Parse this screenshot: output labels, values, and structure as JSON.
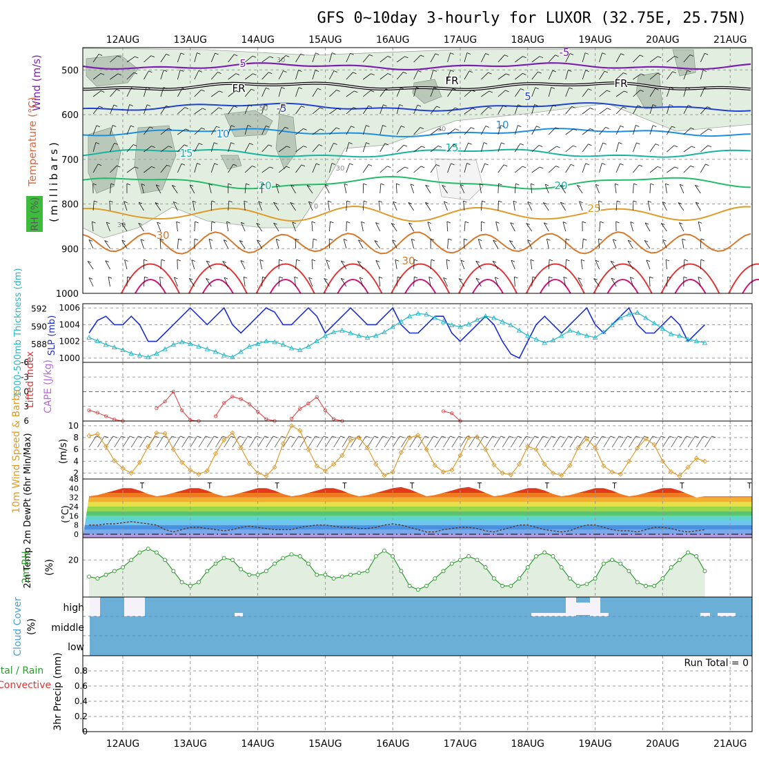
{
  "title": "GFS 0~10day 3-hourly for LUXOR (32.75E, 25.75N)",
  "colors": {
    "bg": "#ffffff",
    "axis": "#000000",
    "grid": "#9a9a9a",
    "rh_light": "#e2efe0",
    "rh_dark": "#b9c8b9",
    "purple": "#7b1fb0",
    "blue": "#2040d0",
    "lightblue": "#1e8fe0",
    "teal": "#18b3a0",
    "green": "#22bb66",
    "orange": "#e09a2a",
    "darkorange": "#d6782c",
    "red": "#e03535",
    "magenta": "#d0147a",
    "slp": "#1a2ed0",
    "thick": "#22b8c8",
    "li": "#e03535",
    "cape": "#b56ad6",
    "wind10": "#e09a2a",
    "rh2m": "#2e9a2e",
    "cloud": "#6baed6",
    "cloud_white": "#f6f2fa",
    "precip_green": "#2e9a2e",
    "precip_red": "#e03535"
  },
  "axis_days": [
    "12AUG",
    "13AUG",
    "14AUG",
    "15AUG",
    "16AUG",
    "17AUG",
    "18AUG",
    "19AUG",
    "20AUG",
    "21AUG"
  ],
  "panels": {
    "upper": {
      "ylabel_wind": "Wind (m/s)",
      "ylabel_temp": "Temperature (°C)",
      "ylabel_rh": "RH (%)",
      "ylabel_mb": "(millibars)",
      "ticks": [
        500,
        600,
        700,
        800,
        900,
        1000
      ],
      "labels": [
        {
          "t": "5",
          "x": 352,
          "y": 97,
          "c": "purple"
        },
        {
          "t": "-5",
          "x": 818,
          "y": 81,
          "c": "purple"
        },
        {
          "t": "FR",
          "x": 346,
          "y": 133,
          "c": "axis"
        },
        {
          "t": "FR",
          "x": 655,
          "y": 122,
          "c": "axis"
        },
        {
          "t": "FR",
          "x": 900,
          "y": 126,
          "c": "axis"
        },
        {
          "t": "-5",
          "x": 408,
          "y": 162,
          "c": "blue"
        },
        {
          "t": "5",
          "x": 765,
          "y": 145,
          "c": "blue"
        },
        {
          "t": "10",
          "x": 323,
          "y": 199,
          "c": "lightblue"
        },
        {
          "t": "10",
          "x": 728,
          "y": 186,
          "c": "lightblue"
        },
        {
          "t": "15",
          "x": 270,
          "y": 227,
          "c": "teal"
        },
        {
          "t": "15",
          "x": 655,
          "y": 219,
          "c": "teal"
        },
        {
          "t": "20",
          "x": 384,
          "y": 274,
          "c": "teal"
        },
        {
          "t": "20",
          "x": 813,
          "y": 274,
          "c": "teal"
        },
        {
          "t": "25",
          "x": 861,
          "y": 307,
          "c": "orange"
        },
        {
          "t": "30",
          "x": 236,
          "y": 346,
          "c": "darkorange"
        },
        {
          "t": "30",
          "x": 592,
          "y": 383,
          "c": "darkorange"
        }
      ],
      "rh_labels": [
        {
          "t": "30",
          "x": 407,
          "y": 90
        },
        {
          "t": "50",
          "x": 382,
          "y": 160
        },
        {
          "t": "30",
          "x": 640,
          "y": 190
        },
        {
          "t": "30",
          "x": 493,
          "y": 247
        },
        {
          "t": "30",
          "x": 176,
          "y": 329
        },
        {
          "t": "0",
          "x": 458,
          "y": 302
        }
      ]
    },
    "slp_thickness": {
      "ylabel_thick": "1000-500mb Thickness (dm)",
      "ylabel_slp": "SLP (mb)",
      "left_ticks": [
        588,
        590,
        592
      ],
      "right_ticks": [
        1000,
        1002,
        1004,
        1006
      ]
    },
    "lifted": {
      "ylabel_li": "Lifted Index",
      "ylabel_cape": "CAPE (J/kg)",
      "ticks": [
        "-6",
        "-3",
        "0",
        "3",
        "6"
      ]
    },
    "wind10": {
      "ylabel": "10m Wind Speed & Barbs",
      "ylabel_units": "(m/s)",
      "ticks": [
        2,
        4,
        6,
        8,
        10
      ]
    },
    "temp2m": {
      "ylabel": "2m Temp 2m DewPt (6hr Min/Max)",
      "ylabel_units": "(°C)",
      "ticks": [
        0,
        8,
        16,
        24,
        32,
        40,
        48
      ]
    },
    "rh2m": {
      "ylabel": "2m RH",
      "ylabel_units": "(%)",
      "ticks": [
        20
      ]
    },
    "cloud": {
      "ylabel": "Cloud Cover",
      "ylabel_units": "(%)",
      "levels": [
        "high",
        "middle",
        "low"
      ]
    },
    "precip": {
      "ylabel_total": "Total / Rain",
      "ylabel_conv": "Convective",
      "ylabel_units": "3hr Precip (mm)",
      "run_total": "Run Total = 0",
      "ticks": [
        "0",
        "0.2",
        "0.4",
        "0.6",
        "0.8"
      ]
    }
  },
  "chart_data": {
    "type": "line",
    "title": "GFS 0~10day 3-hourly for LUXOR (32.75E, 25.75N)",
    "x_start": "11AUG 12Z",
    "x_step_hours": 3,
    "x_ticks": [
      "12AUG",
      "13AUG",
      "14AUG",
      "15AUG",
      "16AUG",
      "17AUG",
      "18AUG",
      "19AUG",
      "20AUG",
      "21AUG"
    ],
    "series": [
      {
        "name": "SLP (mb)",
        "values": [
          1003,
          1004.5,
          1005,
          1004,
          1004,
          1005,
          1004,
          1002,
          1002,
          1003,
          1004,
          1005,
          1006,
          1005,
          1004,
          1005,
          1006,
          1004,
          1003,
          1004,
          1005,
          1006,
          1005.5,
          1004,
          1004,
          1005,
          1006,
          1005,
          1003,
          1004,
          1005,
          1006,
          1005,
          1004,
          1004,
          1005,
          1006,
          1004,
          1003,
          1003,
          1004,
          1005,
          1005,
          1003,
          1002,
          1003,
          1004,
          1005,
          1004,
          1002,
          1000.5,
          1000,
          1002,
          1004,
          1005,
          1004,
          1003,
          1004,
          1005,
          1006,
          1004,
          1003,
          1004,
          1005,
          1006,
          1004,
          1003,
          1003,
          1004,
          1005,
          1004,
          1002,
          1003,
          1004
        ],
        "axis": "right"
      },
      {
        "name": "1000-500mb Thickness (dm)",
        "values": [
          588.8,
          588.4,
          588.0,
          587.7,
          587.4,
          587.0,
          586.8,
          586.6,
          587.0,
          587.5,
          588.0,
          588.3,
          588.1,
          587.8,
          587.5,
          587.2,
          586.8,
          586.6,
          587.2,
          587.8,
          588.1,
          588.4,
          588.3,
          588.0,
          587.6,
          587.4,
          587.8,
          588.4,
          589.0,
          589.4,
          589.6,
          589.3,
          589.0,
          588.8,
          589.0,
          589.4,
          590.0,
          590.6,
          591.2,
          591.5,
          591.4,
          591.0,
          590.6,
          590.2,
          590.0,
          590.3,
          590.8,
          591.2,
          591.0,
          590.6,
          590.2,
          589.6,
          589.0,
          588.6,
          588.2,
          588.5,
          589.0,
          589.6,
          589.3,
          589.0,
          588.8,
          589.4,
          590.2,
          591.0,
          591.4,
          591.6,
          591.0,
          590.4,
          589.8,
          589.2,
          589.0,
          588.6,
          588.4,
          588.2
        ],
        "axis": "left"
      },
      {
        "name": "10m Wind Speed (m/s)",
        "values": [
          8.3,
          8.6,
          6.5,
          4.1,
          2.8,
          2.0,
          3.8,
          6.5,
          8.8,
          8.7,
          6.0,
          3.8,
          2.5,
          1.8,
          2.4,
          5.3,
          7.6,
          8.8,
          6.3,
          3.6,
          2.0,
          1.5,
          3.0,
          7.0,
          10.0,
          9.2,
          6.0,
          3.2,
          2.4,
          3.5,
          5.0,
          7.6,
          8.0,
          6.3,
          3.5,
          1.6,
          2.2,
          5.5,
          8.0,
          8.4,
          6.0,
          3.3,
          2.2,
          2.5,
          5.0,
          8.0,
          8.1,
          6.0,
          3.4,
          2.0,
          1.7,
          3.5,
          6.5,
          6.0,
          3.5,
          2.0,
          1.6,
          3.3,
          6.3,
          7.8,
          6.3,
          3.2,
          2.2,
          1.8,
          4.0,
          6.2,
          7.8,
          6.8,
          4.0,
          2.2,
          1.5,
          3.0,
          4.5,
          4.0
        ],
        "axis": "left"
      },
      {
        "name": "2m RH (%)",
        "values": [
          11,
          10,
          12,
          14,
          16,
          20,
          24,
          26,
          24,
          20,
          14,
          8,
          6,
          8,
          14,
          18,
          21,
          20,
          15,
          12,
          12,
          14,
          18,
          21,
          23,
          22,
          18,
          12,
          12,
          10,
          11,
          12,
          13,
          14,
          22,
          25,
          22,
          14,
          6,
          4,
          6,
          10,
          14,
          18,
          20,
          22,
          20,
          16,
          10,
          6,
          6,
          10,
          16,
          22,
          24,
          22,
          16,
          10,
          6,
          7,
          10,
          18,
          20,
          18,
          14,
          8,
          6,
          6,
          10,
          16,
          20,
          24,
          22,
          14
        ],
        "axis": "left"
      },
      {
        "name": "Lifted Index",
        "values": [
          3.8,
          4.3,
          5.0,
          5.7,
          6.0,
          6.0,
          6.0,
          6.0,
          3.4,
          2.0,
          0.0,
          3.8,
          5.8,
          6.0,
          6.0,
          5.0,
          2.3,
          1.0,
          1.5,
          2.5,
          4.1,
          5.6,
          6.0,
          6.0,
          5.5,
          3.5,
          2.4,
          1.1,
          3.8,
          5.6,
          6.0,
          6.0,
          6.0,
          6.0,
          6.0,
          6.0,
          6.0,
          6.0,
          6.0,
          6.0,
          6.0,
          6.0,
          4.0,
          4.4,
          6.0,
          6.0,
          6.0,
          6.0,
          6.0,
          6.0,
          6.0,
          6.0,
          6.0,
          6.0,
          6.0,
          6.0,
          6.0,
          6.0,
          6.0,
          6.0,
          6.0,
          6.0,
          6.0,
          6.0,
          6.0,
          6.0,
          6.0,
          6.0,
          6.0,
          6.0,
          6.0,
          6.0,
          6.0,
          6.0
        ],
        "axis": "left"
      },
      {
        "name": "2m Temp (°C)",
        "values": [
          33,
          34,
          36,
          38,
          40,
          40,
          38,
          35,
          33,
          34,
          36,
          38,
          40,
          40,
          38,
          35,
          33,
          34,
          36,
          38,
          40,
          40,
          38,
          35,
          33,
          34,
          36,
          38,
          40,
          40,
          38,
          35,
          33,
          34,
          36,
          38,
          40,
          41,
          39,
          36,
          33,
          34,
          36,
          38,
          40,
          41,
          39,
          36,
          33,
          34,
          36,
          38,
          40,
          40,
          38,
          35,
          33,
          34,
          36,
          38,
          40,
          40,
          38,
          35,
          33,
          34,
          36,
          38,
          40,
          40,
          38,
          35,
          32,
          33
        ],
        "axis": "left"
      },
      {
        "name": "2m DewPt (°C)",
        "values": [
          8,
          8,
          9,
          9,
          10,
          11,
          10,
          9,
          8,
          4,
          2,
          4,
          6,
          6,
          5,
          4,
          3,
          4,
          6,
          7,
          6,
          5,
          4,
          4,
          4,
          6,
          7,
          8,
          8,
          7,
          6,
          6,
          5,
          5,
          6,
          8,
          9,
          8,
          6,
          4,
          2,
          2,
          4,
          5,
          6,
          6,
          5,
          3,
          2,
          4,
          6,
          8,
          8,
          6,
          4,
          3,
          2,
          3,
          6,
          8,
          8,
          6,
          4,
          3,
          3,
          2,
          4,
          6,
          6,
          5,
          3,
          2,
          3,
          4
        ],
        "axis": "left"
      },
      {
        "name": "3hr Precip (mm)",
        "values": [
          0,
          0,
          0,
          0,
          0,
          0,
          0,
          0,
          0,
          0,
          0,
          0,
          0,
          0,
          0,
          0,
          0,
          0,
          0,
          0,
          0,
          0,
          0,
          0,
          0,
          0,
          0,
          0,
          0,
          0,
          0,
          0,
          0,
          0,
          0,
          0,
          0,
          0,
          0,
          0,
          0,
          0,
          0,
          0,
          0,
          0,
          0,
          0,
          0,
          0,
          0,
          0,
          0,
          0,
          0,
          0,
          0,
          0,
          0,
          0,
          0,
          0,
          0,
          0,
          0,
          0,
          0,
          0,
          0,
          0,
          0,
          0,
          0,
          0
        ],
        "axis": "left"
      }
    ],
    "axes": {
      "upper_ylim_mb": [
        1000,
        450
      ],
      "slp_ylim": [
        999.5,
        1006.5
      ],
      "thickness_ylim": [
        586.0,
        592.6
      ],
      "lifted_ylim": [
        6,
        -6
      ],
      "wind10_ylim": [
        1,
        10.8
      ],
      "temp2m_ylim": [
        -3,
        48
      ],
      "rh2m_ylim": [
        0,
        32
      ],
      "precip_ylim": [
        0,
        1
      ]
    },
    "grid": true
  }
}
